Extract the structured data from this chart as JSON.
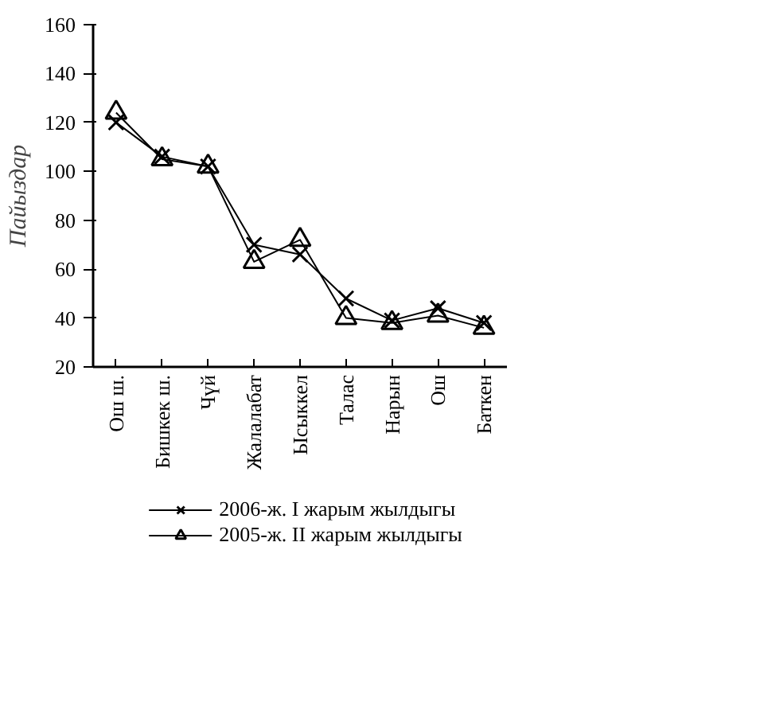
{
  "chart_data": {
    "type": "line",
    "ylabel": "Пайыздар",
    "categories": [
      "Ош ш.",
      "Бишкек ш.",
      "Чүй",
      "Жалалабат",
      "Ысыккел",
      "Талас",
      "Нарын",
      "Ош",
      "Баткен"
    ],
    "series": [
      {
        "name": "2006-ж. I жарым жылдыгы",
        "color": "#000000",
        "marker": "cross",
        "values": [
          120,
          106,
          102,
          70,
          66,
          48,
          39,
          44,
          38
        ]
      },
      {
        "name": "2005-ж. II жарым жылдыгы",
        "color": "#000000",
        "marker": "triangle",
        "values": [
          124,
          105,
          102,
          63,
          72,
          40,
          38,
          41,
          36
        ]
      }
    ],
    "ylim": [
      20,
      160
    ],
    "yticks": [
      20,
      40,
      60,
      80,
      100,
      120,
      140,
      160
    ],
    "grid": false,
    "legend": "bottom"
  }
}
